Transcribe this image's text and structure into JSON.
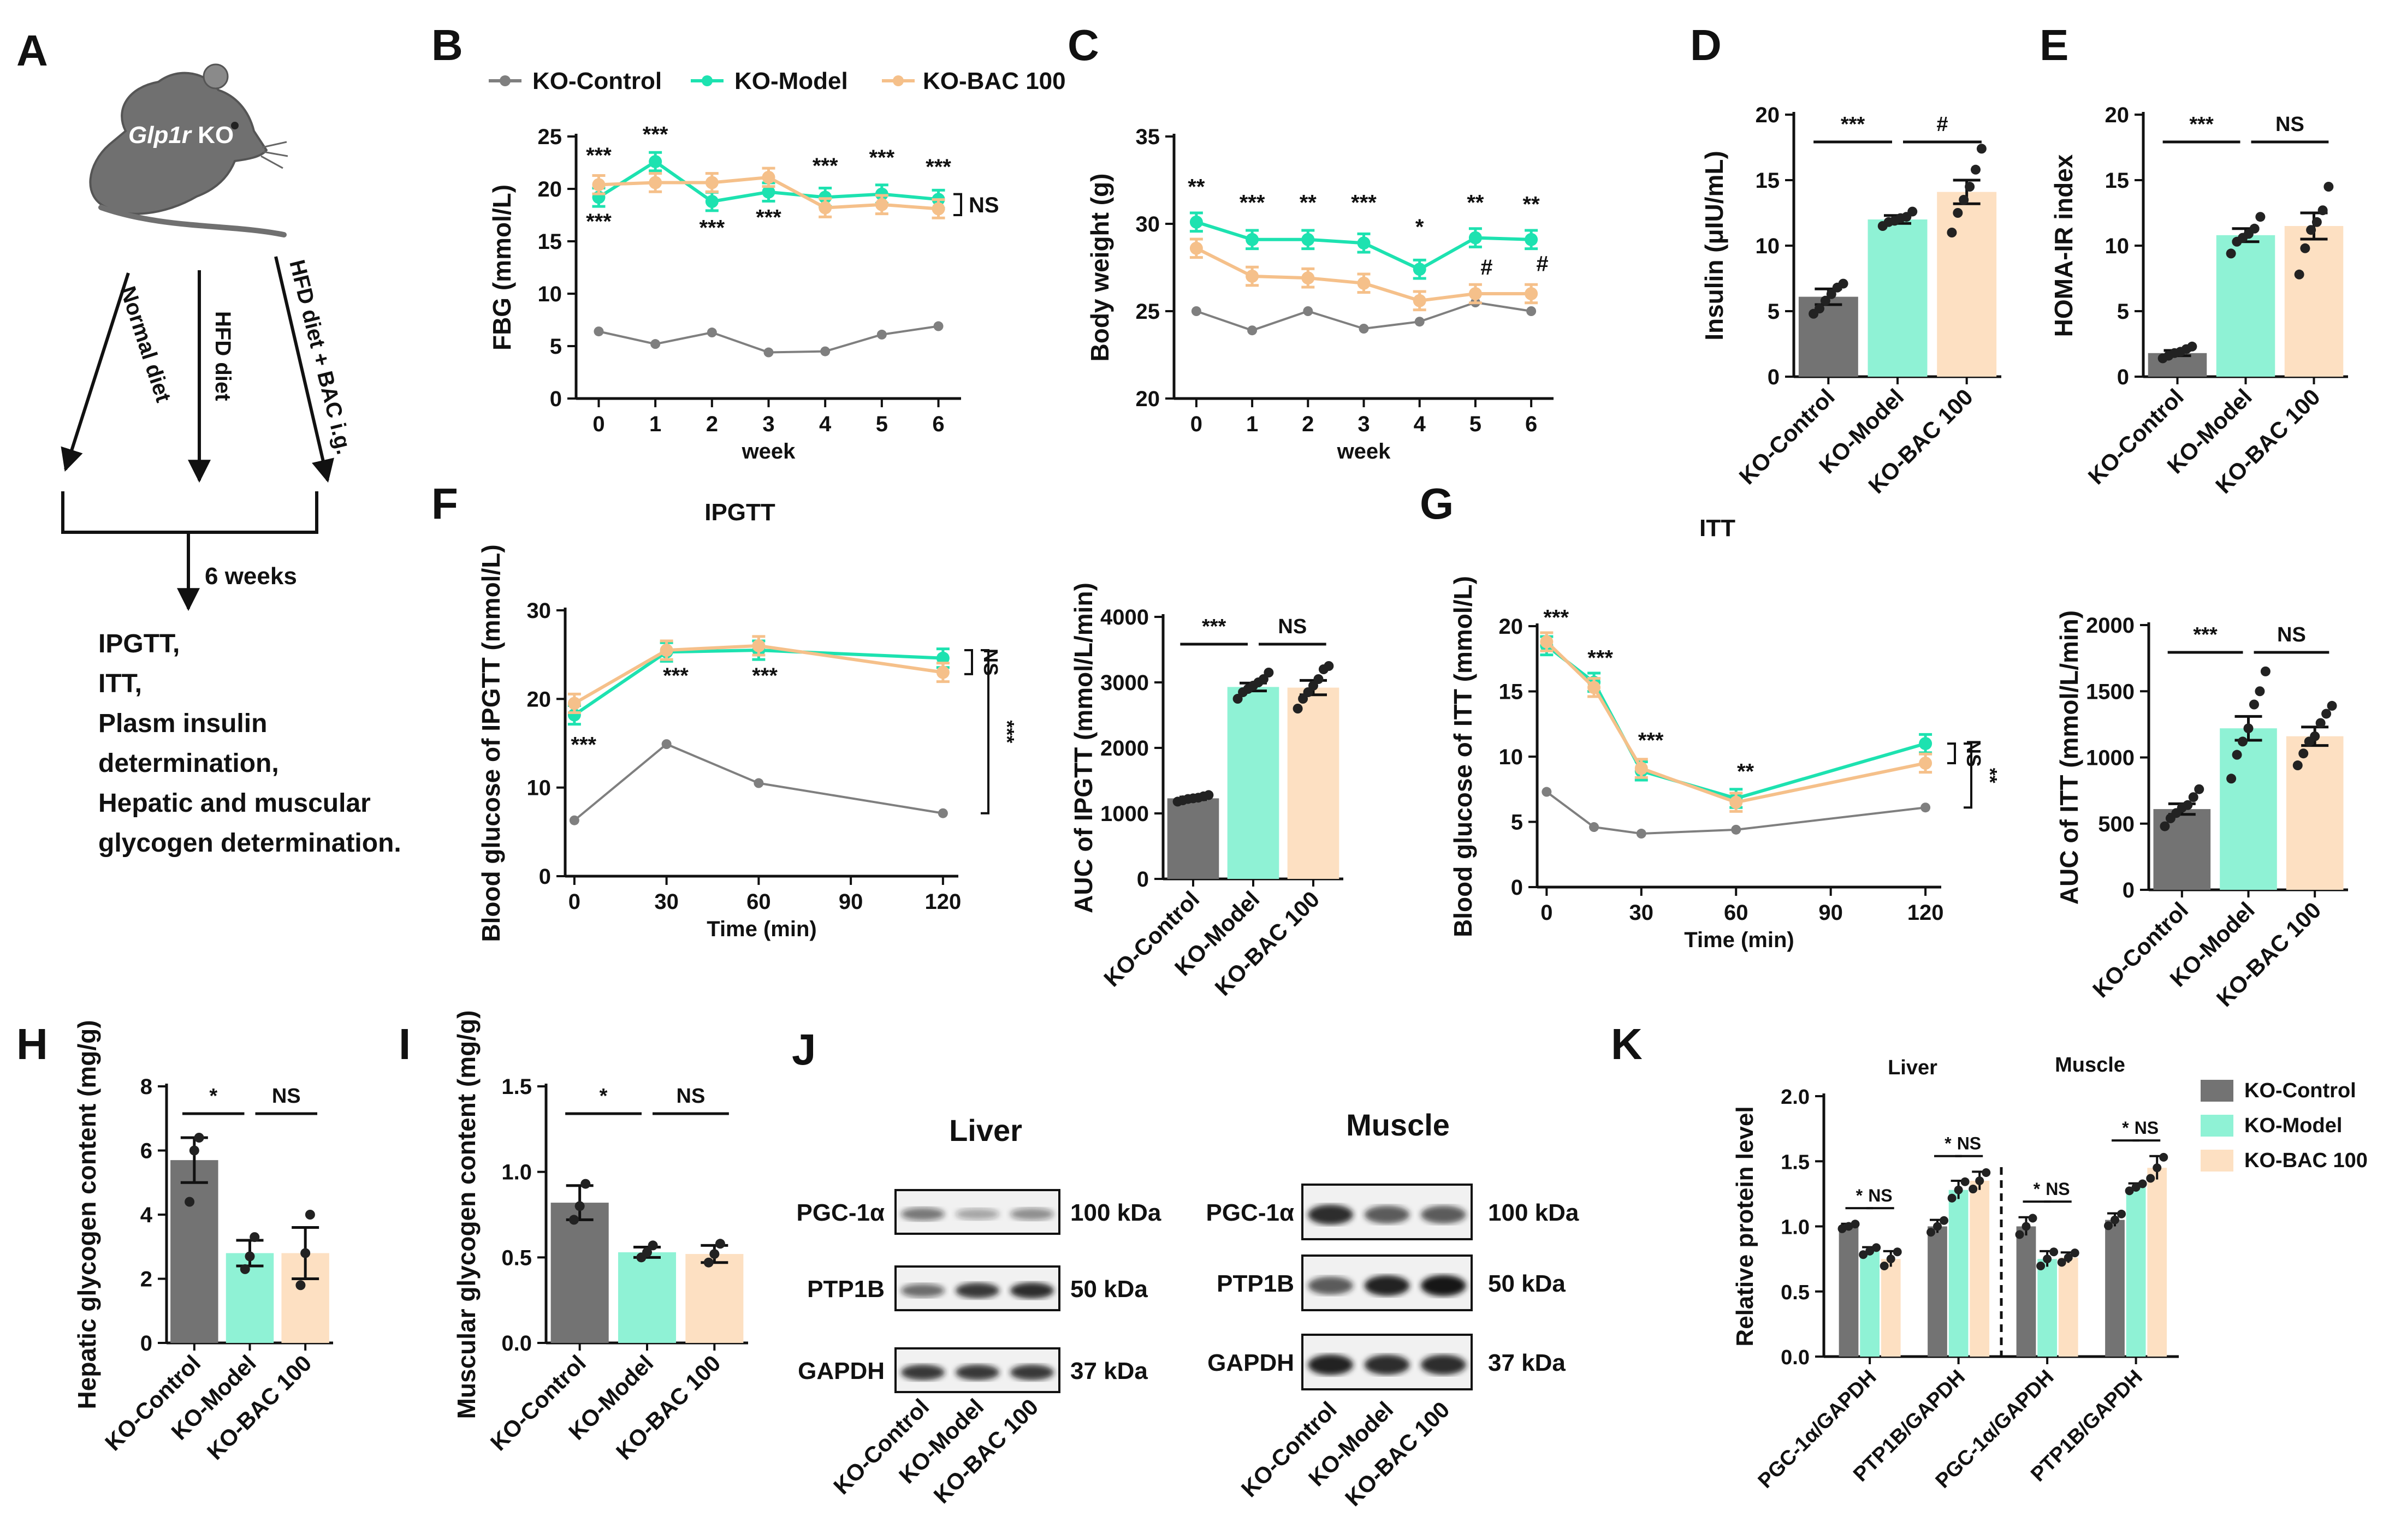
{
  "colors": {
    "control": "#7f7f7f",
    "control_bar": "#737373",
    "model": "#1de2b0",
    "model_bar": "#8ff2d5",
    "bac": "#f5c08a",
    "bac_bar": "#fde0c2",
    "axis": "#111111"
  },
  "panel_letters": [
    "A",
    "B",
    "C",
    "D",
    "E",
    "F",
    "G",
    "H",
    "I",
    "J",
    "K"
  ],
  "groups": [
    "KO-Control",
    "KO-Model",
    "KO-BAC 100"
  ],
  "legend": {
    "control": "KO-Control",
    "model": "KO-Model",
    "bac": "KO-BAC 100"
  },
  "schematic": {
    "mouse_label_gene": "Glp1r",
    "mouse_label_suffix": " KO",
    "arms": [
      "Normal diet",
      "HFD diet",
      "HFD diet + BAC i.g."
    ],
    "duration": "6 weeks",
    "outcomes": [
      "IPGTT,",
      "ITT,",
      "Plasm insulin",
      "determination,",
      "Hepatic and muscular",
      "glycogen determination."
    ]
  },
  "chart_data": [
    {
      "id": "B",
      "type": "line",
      "title": "",
      "xlabel": "week",
      "ylabel": "FBG (mmol/L)",
      "x": [
        0,
        1,
        2,
        3,
        4,
        5,
        6
      ],
      "xlim": [
        -0.4,
        6.4
      ],
      "ylim": [
        0,
        25
      ],
      "yticks": [
        0,
        5,
        10,
        15,
        20,
        25
      ],
      "series": [
        {
          "name": "KO-Control",
          "values": [
            6.4,
            5.2,
            6.3,
            4.4,
            4.5,
            6.1,
            6.9
          ]
        },
        {
          "name": "KO-Model",
          "values": [
            19.2,
            22.6,
            18.8,
            19.7,
            19.2,
            19.5,
            19.0
          ]
        },
        {
          "name": "KO-BAC 100",
          "values": [
            20.4,
            20.6,
            20.6,
            21.1,
            18.2,
            18.5,
            18.1
          ]
        }
      ],
      "annotations": [
        {
          "x": 0,
          "y": 22.5,
          "text": "***"
        },
        {
          "x": 1,
          "y": 24.5,
          "text": "***"
        },
        {
          "x": 4,
          "y": 21.5,
          "text": "***"
        },
        {
          "x": 5,
          "y": 22.3,
          "text": "***"
        },
        {
          "x": 6,
          "y": 21.4,
          "text": "***"
        },
        {
          "x": 0,
          "y": 16.2,
          "text": "***"
        },
        {
          "x": 2,
          "y": 15.6,
          "text": "***"
        },
        {
          "x": 3,
          "y": 16.6,
          "text": "***"
        }
      ],
      "side_annotation": "NS"
    },
    {
      "id": "C",
      "type": "line",
      "title": "",
      "xlabel": "week",
      "ylabel": "Body weight (g)",
      "x": [
        0,
        1,
        2,
        3,
        4,
        5,
        6
      ],
      "xlim": [
        -0.4,
        6.4
      ],
      "ylim": [
        20,
        35
      ],
      "yticks": [
        20,
        25,
        30,
        35
      ],
      "series": [
        {
          "name": "KO-Control",
          "values": [
            25.0,
            23.9,
            25.0,
            24.0,
            24.4,
            25.5,
            25.0
          ]
        },
        {
          "name": "KO-Model",
          "values": [
            30.1,
            29.1,
            29.1,
            28.9,
            27.4,
            29.2,
            29.1
          ]
        },
        {
          "name": "KO-BAC 100",
          "values": [
            28.6,
            27.0,
            26.9,
            26.6,
            25.6,
            26.0,
            26.0
          ]
        }
      ],
      "annotations": [
        {
          "x": 0,
          "y": 31.7,
          "text": "**"
        },
        {
          "x": 1,
          "y": 30.8,
          "text": "***"
        },
        {
          "x": 2,
          "y": 30.8,
          "text": "**"
        },
        {
          "x": 3,
          "y": 30.8,
          "text": "***"
        },
        {
          "x": 4,
          "y": 29.4,
          "text": "*"
        },
        {
          "x": 5,
          "y": 30.8,
          "text": "**"
        },
        {
          "x": 6,
          "y": 30.7,
          "text": "**"
        },
        {
          "x": 5.2,
          "y": 27.1,
          "text": "#"
        },
        {
          "x": 6.2,
          "y": 27.3,
          "text": "#"
        }
      ]
    },
    {
      "id": "D",
      "type": "bar",
      "title": "",
      "xlabel": "",
      "ylabel": "Insulin (μIU/mL)",
      "categories": [
        "KO-Control",
        "KO-Model",
        "KO-BAC 100"
      ],
      "values": [
        6.1,
        12.0,
        14.1
      ],
      "errors": [
        0.6,
        0.3,
        0.9
      ],
      "points": [
        [
          4.8,
          5.2,
          5.8,
          6.3,
          6.8,
          7.1
        ],
        [
          11.5,
          11.8,
          11.9,
          12.1,
          12.2,
          12.6
        ],
        [
          11.0,
          12.5,
          13.5,
          14.5,
          15.8,
          17.4
        ]
      ],
      "ylim": [
        0,
        20
      ],
      "yticks": [
        0,
        5,
        10,
        15,
        20
      ],
      "comparisons": [
        {
          "from": 0,
          "to": 1,
          "text": "***"
        },
        {
          "from": 1,
          "to": 2,
          "text": "#"
        }
      ]
    },
    {
      "id": "E",
      "type": "bar",
      "title": "",
      "xlabel": "",
      "ylabel": "HOMA-IR index",
      "categories": [
        "KO-Control",
        "KO-Model",
        "KO-BAC 100"
      ],
      "values": [
        1.8,
        10.8,
        11.5
      ],
      "errors": [
        0.2,
        0.5,
        1.0
      ],
      "points": [
        [
          1.4,
          1.6,
          1.8,
          1.9,
          2.1,
          2.3
        ],
        [
          9.4,
          10.3,
          10.6,
          10.9,
          11.3,
          12.2
        ],
        [
          7.8,
          9.8,
          11.2,
          11.8,
          12.7,
          14.5
        ]
      ],
      "ylim": [
        0,
        20
      ],
      "yticks": [
        0,
        5,
        10,
        15,
        20
      ],
      "comparisons": [
        {
          "from": 0,
          "to": 1,
          "text": "***"
        },
        {
          "from": 1,
          "to": 2,
          "text": "NS"
        }
      ]
    },
    {
      "id": "F-curve",
      "type": "line",
      "title": "IPGTT",
      "xlabel": "Time (min)",
      "ylabel": "Blood glucose of IPGTT (mmol/L)",
      "x": [
        0,
        30,
        60,
        120
      ],
      "xticks": [
        0,
        30,
        60,
        90,
        120
      ],
      "xlim": [
        -3,
        125
      ],
      "ylim": [
        0,
        30
      ],
      "yticks": [
        0,
        10,
        20,
        30
      ],
      "series": [
        {
          "name": "KO-Control",
          "values": [
            6.3,
            14.9,
            10.5,
            7.1
          ]
        },
        {
          "name": "KO-Model",
          "values": [
            18.2,
            25.3,
            25.5,
            24.6
          ]
        },
        {
          "name": "KO-BAC 100",
          "values": [
            19.5,
            25.5,
            26.0,
            23.0
          ]
        }
      ],
      "annotations": [
        {
          "x": 3,
          "y": 14.0,
          "text": "***"
        },
        {
          "x": 33,
          "y": 21.8,
          "text": "***"
        },
        {
          "x": 62,
          "y": 21.8,
          "text": "***"
        }
      ],
      "side_annotations": [
        "NS",
        "***"
      ]
    },
    {
      "id": "F-auc",
      "type": "bar",
      "title": "",
      "xlabel": "",
      "ylabel": "AUC of IPGTT (mmol/L/min)",
      "categories": [
        "KO-Control",
        "KO-Model",
        "KO-BAC 100"
      ],
      "values": [
        1230,
        2930,
        2920
      ],
      "errors": [
        20,
        60,
        110
      ],
      "points": [
        [
          1180,
          1200,
          1220,
          1230,
          1240,
          1260,
          1280
        ],
        [
          2750,
          2850,
          2900,
          2950,
          3000,
          3050,
          3150
        ],
        [
          2600,
          2750,
          2850,
          2950,
          3050,
          3200,
          3250
        ]
      ],
      "ylim": [
        0,
        4000
      ],
      "yticks": [
        0,
        1000,
        2000,
        3000,
        4000
      ],
      "comparisons": [
        {
          "from": 0,
          "to": 1,
          "text": "***"
        },
        {
          "from": 1,
          "to": 2,
          "text": "NS"
        }
      ]
    },
    {
      "id": "G-curve",
      "type": "line",
      "title": "ITT",
      "xlabel": "Time (min)",
      "ylabel": "Blood glucose of ITT (mmol/L)",
      "x": [
        0,
        15,
        30,
        60,
        120
      ],
      "xticks": [
        0,
        30,
        60,
        90,
        120
      ],
      "xlim": [
        -3,
        125
      ],
      "ylim": [
        0,
        20
      ],
      "yticks": [
        0,
        5,
        10,
        15,
        20
      ],
      "series": [
        {
          "name": "KO-Control",
          "values": [
            7.3,
            4.6,
            4.1,
            4.4,
            6.1
          ]
        },
        {
          "name": "KO-Model",
          "values": [
            18.5,
            15.7,
            8.9,
            6.8,
            11.0
          ]
        },
        {
          "name": "KO-BAC 100",
          "values": [
            18.8,
            15.3,
            9.1,
            6.5,
            9.5
          ]
        }
      ],
      "annotations": [
        {
          "x": 3,
          "y": 20.1,
          "text": "***"
        },
        {
          "x": 17,
          "y": 17.0,
          "text": "***"
        },
        {
          "x": 33,
          "y": 10.7,
          "text": "***"
        },
        {
          "x": 63,
          "y": 8.3,
          "text": "**"
        }
      ],
      "side_annotations": [
        "NS",
        "**"
      ]
    },
    {
      "id": "G-auc",
      "type": "bar",
      "title": "",
      "xlabel": "",
      "ylabel": "AUC of ITT (mmol/L/min)",
      "categories": [
        "KO-Control",
        "KO-Model",
        "KO-BAC 100"
      ],
      "values": [
        610,
        1220,
        1160
      ],
      "errors": [
        40,
        90,
        70
      ],
      "points": [
        [
          480,
          540,
          580,
          620,
          640,
          700,
          760
        ],
        [
          840,
          1020,
          1120,
          1220,
          1400,
          1500,
          1650
        ],
        [
          940,
          1030,
          1120,
          1160,
          1260,
          1330,
          1390
        ]
      ],
      "ylim": [
        0,
        2000
      ],
      "yticks": [
        0,
        500,
        1000,
        1500,
        2000
      ],
      "comparisons": [
        {
          "from": 0,
          "to": 1,
          "text": "***"
        },
        {
          "from": 1,
          "to": 2,
          "text": "NS"
        }
      ]
    },
    {
      "id": "H",
      "type": "bar",
      "title": "",
      "xlabel": "",
      "ylabel": "Hepatic glycogen content (mg/g)",
      "categories": [
        "KO-Control",
        "KO-Model",
        "KO-BAC 100"
      ],
      "values": [
        5.7,
        2.8,
        2.8
      ],
      "errors": [
        0.7,
        0.4,
        0.8
      ],
      "points": [
        [
          4.4,
          6.0,
          6.4
        ],
        [
          2.3,
          2.7,
          3.3
        ],
        [
          1.8,
          2.8,
          4.0
        ]
      ],
      "ylim": [
        0,
        8
      ],
      "yticks": [
        0,
        2,
        4,
        6,
        8
      ],
      "comparisons": [
        {
          "from": 0,
          "to": 1,
          "text": "*"
        },
        {
          "from": 1,
          "to": 2,
          "text": "NS"
        }
      ]
    },
    {
      "id": "I",
      "type": "bar",
      "title": "",
      "xlabel": "",
      "ylabel": "Muscular glycogen content (mg/g)",
      "categories": [
        "KO-Control",
        "KO-Model",
        "KO-BAC 100"
      ],
      "values": [
        0.82,
        0.53,
        0.52
      ],
      "errors": [
        0.1,
        0.03,
        0.05
      ],
      "points": [
        [
          0.72,
          0.8,
          0.93
        ],
        [
          0.5,
          0.53,
          0.57
        ],
        [
          0.47,
          0.52,
          0.58
        ]
      ],
      "ylim": [
        0,
        1.5
      ],
      "yticks": [
        0.0,
        0.5,
        1.0,
        1.5
      ],
      "comparisons": [
        {
          "from": 0,
          "to": 1,
          "text": "*"
        },
        {
          "from": 1,
          "to": 2,
          "text": "NS"
        }
      ]
    },
    {
      "id": "K",
      "type": "bar",
      "title": "",
      "xlabel": "",
      "ylabel": "Relative protein level",
      "section_labels": [
        "Liver",
        "Muscle"
      ],
      "categories": [
        "PGC-1α/GAPDH",
        "PTP1B/GAPDH",
        "PGC-1α/GAPDH",
        "PTP1B/GAPDH"
      ],
      "series": [
        {
          "name": "KO-Control",
          "values": [
            1.0,
            1.0,
            1.0,
            1.05
          ],
          "errors": [
            0.02,
            0.05,
            0.07,
            0.05
          ]
        },
        {
          "name": "KO-Model",
          "values": [
            0.81,
            1.28,
            0.75,
            1.3
          ],
          "errors": [
            0.03,
            0.07,
            0.06,
            0.03
          ]
        },
        {
          "name": "KO-BAC 100",
          "values": [
            0.75,
            1.35,
            0.76,
            1.45
          ],
          "errors": [
            0.06,
            0.07,
            0.04,
            0.09
          ]
        }
      ],
      "ylim": [
        0,
        2.0
      ],
      "yticks": [
        0.0,
        0.5,
        1.0,
        1.5,
        2.0
      ],
      "comparisons": [
        {
          "group": 0,
          "from": 0,
          "to": 1,
          "text": "*"
        },
        {
          "group": 0,
          "from": 1,
          "to": 2,
          "text": "NS"
        },
        {
          "group": 1,
          "from": 0,
          "to": 1,
          "text": "*"
        },
        {
          "group": 1,
          "from": 1,
          "to": 2,
          "text": "NS"
        },
        {
          "group": 2,
          "from": 0,
          "to": 1,
          "text": "*"
        },
        {
          "group": 2,
          "from": 1,
          "to": 2,
          "text": "NS"
        },
        {
          "group": 3,
          "from": 0,
          "to": 1,
          "text": "*"
        },
        {
          "group": 3,
          "from": 1,
          "to": 2,
          "text": "NS"
        }
      ]
    }
  ],
  "western_blot": {
    "liver": {
      "title": "Liver",
      "bands": [
        {
          "protein": "PGC-1α",
          "size": "100 kDa"
        },
        {
          "protein": "PTP1B",
          "size": "50 kDa"
        },
        {
          "protein": "GAPDH",
          "size": "37 kDa"
        }
      ],
      "intensity": [
        [
          0.55,
          0.35,
          0.45
        ],
        [
          0.6,
          0.85,
          0.9
        ],
        [
          0.85,
          0.85,
          0.85
        ]
      ]
    },
    "muscle": {
      "title": "Muscle",
      "bands": [
        {
          "protein": "PGC-1α",
          "size": "100 kDa"
        },
        {
          "protein": "PTP1B",
          "size": "50 kDa"
        },
        {
          "protein": "GAPDH",
          "size": "37 kDa"
        }
      ],
      "intensity": [
        [
          0.9,
          0.7,
          0.7
        ],
        [
          0.7,
          0.95,
          1.0
        ],
        [
          0.95,
          0.9,
          0.9
        ]
      ]
    }
  }
}
